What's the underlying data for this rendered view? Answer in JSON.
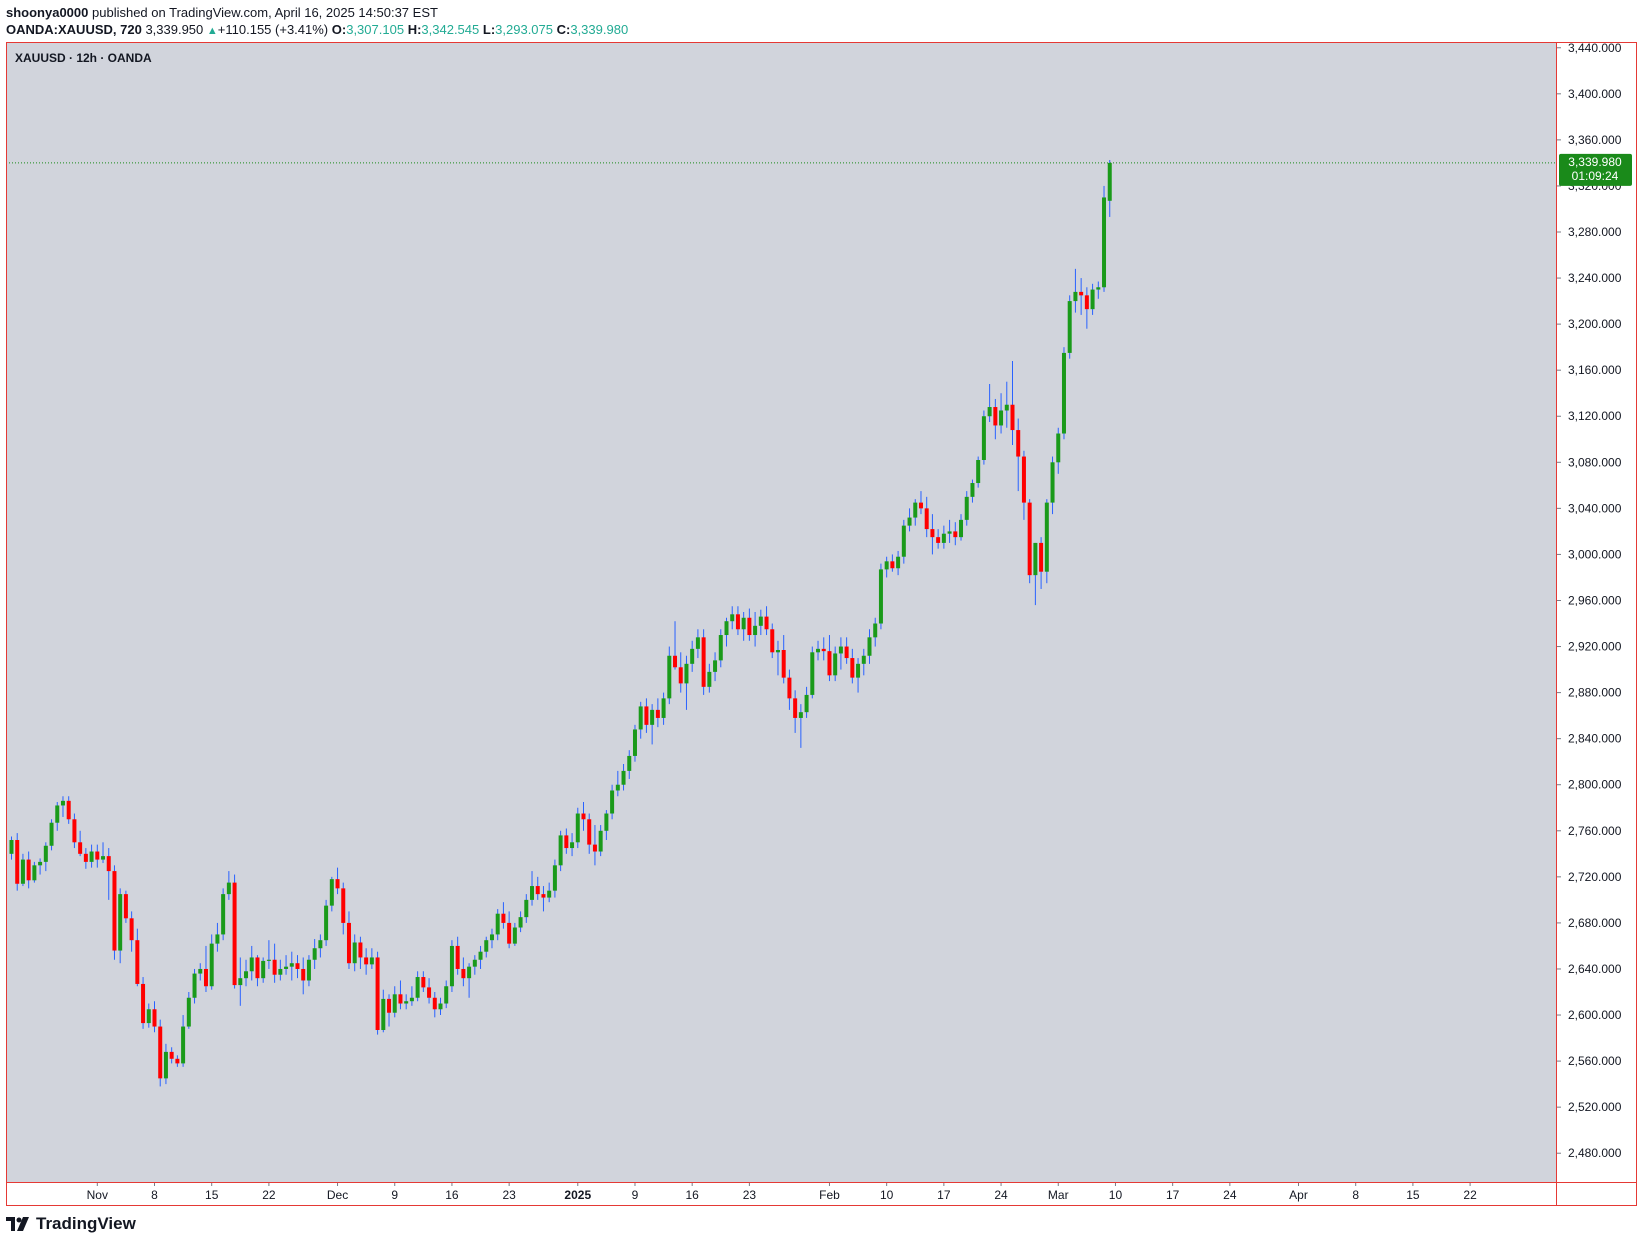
{
  "header": {
    "author": "shoonya0000",
    "publish_text": "published on TradingView.com, April 16, 2025 14:50:37 EST"
  },
  "ohlc_bar": {
    "symbol": "OANDA:XAUUSD, 720",
    "last": "3,339.950",
    "change": "+110.155 (+3.41%)",
    "o_label": "O:",
    "o_value": "3,307.105",
    "h_label": "H:",
    "h_value": "3,342.545",
    "l_label": "L:",
    "l_value": "3,293.075",
    "c_label": "C:",
    "c_value": "3,339.980"
  },
  "chart_label": "XAUUSD · 12h · OANDA",
  "price_tag": {
    "price": "3,339.980",
    "countdown": "01:09:24"
  },
  "footer": {
    "brand": "TradingView"
  },
  "colors": {
    "up": "#089981",
    "up_fill": "#1a9a1a",
    "down": "#f23645",
    "down_fill": "#ff0000",
    "wick": "#2962ff",
    "pane_bg": "#d1d4dc",
    "border": "#e53935",
    "last_price": "#1a8a1a"
  },
  "chart_data": {
    "type": "candlestick",
    "interval": "12h",
    "symbol": "XAUUSD",
    "ylim": [
      2455,
      3445
    ],
    "y_ticks": [
      {
        "value": 3440,
        "label": "3,440.000"
      },
      {
        "value": 3400,
        "label": "3,400.000"
      },
      {
        "value": 3360,
        "label": "3,360.000"
      },
      {
        "value": 3320,
        "label": "3,320.000"
      },
      {
        "value": 3280,
        "label": "3,280.000"
      },
      {
        "value": 3240,
        "label": "3,240.000"
      },
      {
        "value": 3200,
        "label": "3,200.000"
      },
      {
        "value": 3160,
        "label": "3,160.000"
      },
      {
        "value": 3120,
        "label": "3,120.000"
      },
      {
        "value": 3080,
        "label": "3,080.000"
      },
      {
        "value": 3040,
        "label": "3,040.000"
      },
      {
        "value": 3000,
        "label": "3,000.000"
      },
      {
        "value": 2960,
        "label": "2,960.000"
      },
      {
        "value": 2920,
        "label": "2,920.000"
      },
      {
        "value": 2880,
        "label": "2,880.000"
      },
      {
        "value": 2840,
        "label": "2,840.000"
      },
      {
        "value": 2800,
        "label": "2,800.000"
      },
      {
        "value": 2760,
        "label": "2,760.000"
      },
      {
        "value": 2720,
        "label": "2,720.000"
      },
      {
        "value": 2680,
        "label": "2,680.000"
      },
      {
        "value": 2640,
        "label": "2,640.000"
      },
      {
        "value": 2600,
        "label": "2,600.000"
      },
      {
        "value": 2560,
        "label": "2,560.000"
      },
      {
        "value": 2520,
        "label": "2,520.000"
      },
      {
        "value": 2480,
        "label": "2,480.000"
      }
    ],
    "x_ticks": [
      {
        "bar": 15,
        "label": "Nov",
        "bold": false
      },
      {
        "bar": 25,
        "label": "8",
        "bold": false
      },
      {
        "bar": 35,
        "label": "15",
        "bold": false
      },
      {
        "bar": 45,
        "label": "22",
        "bold": false
      },
      {
        "bar": 57,
        "label": "Dec",
        "bold": false
      },
      {
        "bar": 67,
        "label": "9",
        "bold": false
      },
      {
        "bar": 77,
        "label": "16",
        "bold": false
      },
      {
        "bar": 87,
        "label": "23",
        "bold": false
      },
      {
        "bar": 99,
        "label": "2025",
        "bold": true
      },
      {
        "bar": 109,
        "label": "9",
        "bold": false
      },
      {
        "bar": 119,
        "label": "16",
        "bold": false
      },
      {
        "bar": 129,
        "label": "23",
        "bold": false
      },
      {
        "bar": 143,
        "label": "Feb",
        "bold": false
      },
      {
        "bar": 153,
        "label": "10",
        "bold": false
      },
      {
        "bar": 163,
        "label": "17",
        "bold": false
      },
      {
        "bar": 173,
        "label": "24",
        "bold": false
      },
      {
        "bar": 183,
        "label": "Mar",
        "bold": false
      },
      {
        "bar": 193,
        "label": "10",
        "bold": false
      },
      {
        "bar": 203,
        "label": "17",
        "bold": false
      },
      {
        "bar": 213,
        "label": "24",
        "bold": false
      },
      {
        "bar": 225,
        "label": "Apr",
        "bold": false
      },
      {
        "bar": 235,
        "label": "8",
        "bold": false
      },
      {
        "bar": 245,
        "label": "15",
        "bold": false
      },
      {
        "bar": 255,
        "label": "22",
        "bold": false
      }
    ],
    "last_price": 3339.98,
    "candles": [
      [
        2740,
        2755,
        2735,
        2752
      ],
      [
        2752,
        2758,
        2708,
        2714
      ],
      [
        2714,
        2740,
        2712,
        2735
      ],
      [
        2735,
        2742,
        2710,
        2717
      ],
      [
        2717,
        2733,
        2715,
        2730
      ],
      [
        2730,
        2736,
        2722,
        2733
      ],
      [
        2733,
        2750,
        2725,
        2747
      ],
      [
        2747,
        2770,
        2743,
        2767
      ],
      [
        2767,
        2785,
        2760,
        2782
      ],
      [
        2782,
        2790,
        2772,
        2786
      ],
      [
        2786,
        2790,
        2766,
        2770
      ],
      [
        2770,
        2775,
        2745,
        2750
      ],
      [
        2750,
        2760,
        2738,
        2740
      ],
      [
        2740,
        2745,
        2727,
        2733
      ],
      [
        2733,
        2748,
        2728,
        2742
      ],
      [
        2742,
        2748,
        2728,
        2735
      ],
      [
        2735,
        2750,
        2732,
        2738
      ],
      [
        2738,
        2745,
        2700,
        2725
      ],
      [
        2725,
        2730,
        2648,
        2656
      ],
      [
        2656,
        2710,
        2645,
        2705
      ],
      [
        2705,
        2708,
        2680,
        2684
      ],
      [
        2684,
        2690,
        2655,
        2665
      ],
      [
        2665,
        2675,
        2625,
        2627
      ],
      [
        2627,
        2633,
        2588,
        2593
      ],
      [
        2593,
        2610,
        2589,
        2605
      ],
      [
        2605,
        2612,
        2585,
        2590
      ],
      [
        2590,
        2596,
        2538,
        2545
      ],
      [
        2545,
        2575,
        2540,
        2568
      ],
      [
        2568,
        2572,
        2558,
        2562
      ],
      [
        2562,
        2565,
        2555,
        2558
      ],
      [
        2558,
        2600,
        2555,
        2590
      ],
      [
        2590,
        2620,
        2588,
        2615
      ],
      [
        2615,
        2640,
        2610,
        2636
      ],
      [
        2636,
        2645,
        2630,
        2640
      ],
      [
        2640,
        2660,
        2620,
        2625
      ],
      [
        2625,
        2670,
        2622,
        2662
      ],
      [
        2662,
        2680,
        2655,
        2670
      ],
      [
        2670,
        2710,
        2665,
        2705
      ],
      [
        2705,
        2725,
        2700,
        2715
      ],
      [
        2715,
        2722,
        2623,
        2626
      ],
      [
        2626,
        2650,
        2608,
        2632
      ],
      [
        2632,
        2648,
        2625,
        2638
      ],
      [
        2638,
        2660,
        2630,
        2650
      ],
      [
        2650,
        2652,
        2625,
        2632
      ],
      [
        2632,
        2650,
        2628,
        2647
      ],
      [
        2647,
        2665,
        2640,
        2648
      ],
      [
        2648,
        2662,
        2628,
        2635
      ],
      [
        2635,
        2648,
        2630,
        2640
      ],
      [
        2640,
        2652,
        2635,
        2642
      ],
      [
        2642,
        2655,
        2630,
        2645
      ],
      [
        2645,
        2652,
        2632,
        2640
      ],
      [
        2640,
        2650,
        2618,
        2630
      ],
      [
        2630,
        2652,
        2625,
        2648
      ],
      [
        2648,
        2666,
        2640,
        2658
      ],
      [
        2658,
        2670,
        2650,
        2665
      ],
      [
        2665,
        2700,
        2660,
        2695
      ],
      [
        2695,
        2720,
        2690,
        2718
      ],
      [
        2718,
        2728,
        2705,
        2710
      ],
      [
        2710,
        2715,
        2670,
        2680
      ],
      [
        2680,
        2690,
        2640,
        2645
      ],
      [
        2645,
        2670,
        2638,
        2663
      ],
      [
        2663,
        2668,
        2640,
        2650
      ],
      [
        2650,
        2658,
        2635,
        2644
      ],
      [
        2644,
        2658,
        2640,
        2650
      ],
      [
        2650,
        2655,
        2583,
        2587
      ],
      [
        2587,
        2622,
        2585,
        2614
      ],
      [
        2614,
        2618,
        2590,
        2602
      ],
      [
        2602,
        2625,
        2598,
        2618
      ],
      [
        2618,
        2630,
        2605,
        2610
      ],
      [
        2610,
        2618,
        2605,
        2612
      ],
      [
        2612,
        2625,
        2608,
        2615
      ],
      [
        2615,
        2638,
        2612,
        2633
      ],
      [
        2633,
        2638,
        2620,
        2624
      ],
      [
        2624,
        2632,
        2610,
        2615
      ],
      [
        2615,
        2620,
        2598,
        2605
      ],
      [
        2605,
        2615,
        2600,
        2610
      ],
      [
        2610,
        2630,
        2606,
        2625
      ],
      [
        2625,
        2665,
        2620,
        2660
      ],
      [
        2660,
        2668,
        2635,
        2640
      ],
      [
        2640,
        2650,
        2625,
        2632
      ],
      [
        2632,
        2645,
        2615,
        2642
      ],
      [
        2642,
        2652,
        2635,
        2648
      ],
      [
        2648,
        2660,
        2640,
        2655
      ],
      [
        2655,
        2668,
        2650,
        2665
      ],
      [
        2665,
        2675,
        2658,
        2670
      ],
      [
        2670,
        2692,
        2665,
        2688
      ],
      [
        2688,
        2698,
        2675,
        2680
      ],
      [
        2680,
        2690,
        2658,
        2662
      ],
      [
        2662,
        2680,
        2660,
        2676
      ],
      [
        2676,
        2690,
        2672,
        2685
      ],
      [
        2685,
        2705,
        2680,
        2700
      ],
      [
        2700,
        2725,
        2695,
        2712
      ],
      [
        2712,
        2720,
        2700,
        2705
      ],
      [
        2705,
        2712,
        2690,
        2702
      ],
      [
        2702,
        2715,
        2698,
        2708
      ],
      [
        2708,
        2735,
        2702,
        2730
      ],
      [
        2730,
        2760,
        2725,
        2756
      ],
      [
        2756,
        2762,
        2740,
        2745
      ],
      [
        2745,
        2758,
        2738,
        2750
      ],
      [
        2750,
        2780,
        2745,
        2775
      ],
      [
        2775,
        2785,
        2760,
        2770
      ],
      [
        2770,
        2775,
        2740,
        2748
      ],
      [
        2748,
        2765,
        2730,
        2742
      ],
      [
        2742,
        2765,
        2738,
        2760
      ],
      [
        2760,
        2778,
        2752,
        2775
      ],
      [
        2775,
        2800,
        2770,
        2795
      ],
      [
        2795,
        2812,
        2790,
        2800
      ],
      [
        2800,
        2818,
        2795,
        2812
      ],
      [
        2812,
        2830,
        2805,
        2825
      ],
      [
        2825,
        2852,
        2820,
        2848
      ],
      [
        2848,
        2872,
        2840,
        2868
      ],
      [
        2868,
        2875,
        2845,
        2852
      ],
      [
        2852,
        2870,
        2835,
        2865
      ],
      [
        2865,
        2875,
        2850,
        2858
      ],
      [
        2858,
        2880,
        2852,
        2875
      ],
      [
        2875,
        2920,
        2870,
        2912
      ],
      [
        2912,
        2942,
        2900,
        2902
      ],
      [
        2902,
        2915,
        2880,
        2888
      ],
      [
        2888,
        2912,
        2865,
        2905
      ],
      [
        2905,
        2925,
        2898,
        2918
      ],
      [
        2918,
        2935,
        2910,
        2928
      ],
      [
        2928,
        2935,
        2878,
        2885
      ],
      [
        2885,
        2905,
        2880,
        2898
      ],
      [
        2898,
        2915,
        2890,
        2908
      ],
      [
        2908,
        2935,
        2902,
        2930
      ],
      [
        2930,
        2945,
        2920,
        2942
      ],
      [
        2942,
        2955,
        2935,
        2948
      ],
      [
        2948,
        2955,
        2930,
        2935
      ],
      [
        2935,
        2950,
        2925,
        2945
      ],
      [
        2945,
        2953,
        2925,
        2930
      ],
      [
        2930,
        2950,
        2920,
        2938
      ],
      [
        2938,
        2952,
        2930,
        2946
      ],
      [
        2946,
        2955,
        2930,
        2935
      ],
      [
        2935,
        2940,
        2910,
        2915
      ],
      [
        2915,
        2925,
        2895,
        2917
      ],
      [
        2917,
        2930,
        2888,
        2893
      ],
      [
        2893,
        2900,
        2865,
        2875
      ],
      [
        2875,
        2882,
        2845,
        2858
      ],
      [
        2858,
        2870,
        2832,
        2863
      ],
      [
        2863,
        2885,
        2858,
        2878
      ],
      [
        2878,
        2920,
        2875,
        2915
      ],
      [
        2915,
        2925,
        2908,
        2918
      ],
      [
        2918,
        2928,
        2908,
        2916
      ],
      [
        2916,
        2930,
        2890,
        2895
      ],
      [
        2895,
        2920,
        2890,
        2914
      ],
      [
        2914,
        2928,
        2900,
        2920
      ],
      [
        2920,
        2928,
        2905,
        2910
      ],
      [
        2910,
        2918,
        2888,
        2893
      ],
      [
        2893,
        2910,
        2880,
        2905
      ],
      [
        2905,
        2918,
        2895,
        2912
      ],
      [
        2912,
        2935,
        2905,
        2928
      ],
      [
        2928,
        2945,
        2920,
        2940
      ],
      [
        2940,
        2992,
        2935,
        2987
      ],
      [
        2987,
        2998,
        2980,
        2994
      ],
      [
        2994,
        3000,
        2985,
        2988
      ],
      [
        2988,
        3003,
        2982,
        2998
      ],
      [
        2998,
        3030,
        2992,
        3025
      ],
      [
        3025,
        3040,
        3020,
        3032
      ],
      [
        3032,
        3048,
        3025,
        3045
      ],
      [
        3045,
        3055,
        3035,
        3040
      ],
      [
        3040,
        3050,
        3015,
        3022
      ],
      [
        3022,
        3035,
        3000,
        3015
      ],
      [
        3015,
        3022,
        3005,
        3010
      ],
      [
        3010,
        3025,
        3005,
        3018
      ],
      [
        3018,
        3030,
        3010,
        3020
      ],
      [
        3020,
        3028,
        3008,
        3015
      ],
      [
        3015,
        3035,
        3012,
        3030
      ],
      [
        3030,
        3055,
        3025,
        3050
      ],
      [
        3050,
        3065,
        3045,
        3062
      ],
      [
        3062,
        3085,
        3058,
        3082
      ],
      [
        3082,
        3125,
        3078,
        3120
      ],
      [
        3120,
        3148,
        3115,
        3128
      ],
      [
        3128,
        3135,
        3100,
        3112
      ],
      [
        3112,
        3140,
        3105,
        3125
      ],
      [
        3125,
        3150,
        3110,
        3130
      ],
      [
        3130,
        3168,
        3095,
        3108
      ],
      [
        3108,
        3118,
        3055,
        3085
      ],
      [
        3085,
        3090,
        3030,
        3045
      ],
      [
        3045,
        3048,
        2975,
        2982
      ],
      [
        2982,
        3010,
        2956,
        3010
      ],
      [
        3010,
        3015,
        2970,
        2985
      ],
      [
        2985,
        3048,
        2975,
        3045
      ],
      [
        3045,
        3085,
        3035,
        3080
      ],
      [
        3080,
        3110,
        3070,
        3105
      ],
      [
        3105,
        3180,
        3100,
        3175
      ],
      [
        3175,
        3225,
        3170,
        3220
      ],
      [
        3220,
        3248,
        3210,
        3228
      ],
      [
        3228,
        3240,
        3208,
        3225
      ],
      [
        3225,
        3232,
        3196,
        3213
      ],
      [
        3213,
        3235,
        3208,
        3230
      ],
      [
        3230,
        3237,
        3222,
        3232
      ],
      [
        3232,
        3320,
        3228,
        3310
      ],
      [
        3307.105,
        3342.545,
        3293.075,
        3339.98
      ]
    ]
  }
}
